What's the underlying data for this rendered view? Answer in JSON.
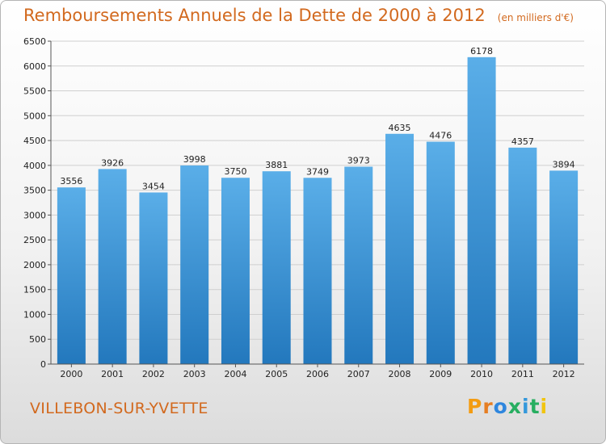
{
  "header": {
    "title": "Remboursements Annuels de la Dette de 2000 à 2012",
    "unit": "(en milliers d'€)"
  },
  "footer": {
    "city": "VILLEBON-SUR-YVETTE",
    "brand": "Proxiti"
  },
  "colors": {
    "accent": "#d2691e",
    "bar_top": "#5aaee8",
    "bar_bottom": "#2378bd",
    "grid": "#cfcfcf",
    "text": "#222222",
    "brand_letters": [
      "#f39c12",
      "#e67e22",
      "#2e86de",
      "#27ae60",
      "#3498db",
      "#27ae60",
      "#f1c40f"
    ]
  },
  "chart_data": {
    "type": "bar",
    "title": "Remboursements Annuels de la Dette de 2000 à 2012",
    "xlabel": "",
    "ylabel": "",
    "categories": [
      "2000",
      "2001",
      "2002",
      "2003",
      "2004",
      "2005",
      "2006",
      "2007",
      "2008",
      "2009",
      "2010",
      "2011",
      "2012"
    ],
    "values": [
      3556,
      3926,
      3454,
      3998,
      3750,
      3881,
      3749,
      3973,
      4635,
      4476,
      6178,
      4357,
      3894
    ],
    "ylim": [
      0,
      6500
    ],
    "yticks": [
      0,
      500,
      1000,
      1500,
      2000,
      2500,
      3000,
      3500,
      4000,
      4500,
      5000,
      5500,
      6000,
      6500
    ],
    "grid": true,
    "legend": "none"
  }
}
